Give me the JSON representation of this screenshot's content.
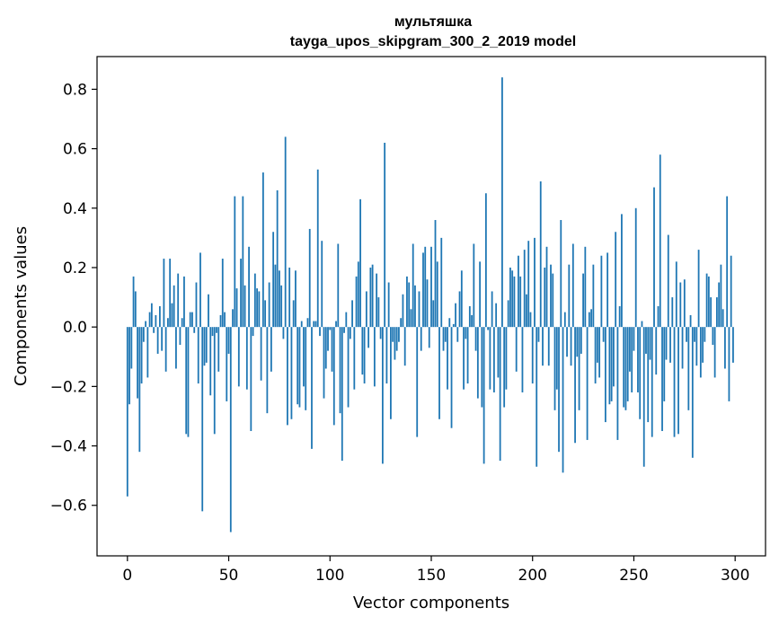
{
  "chart_data": {
    "type": "bar",
    "title": "мультяшка",
    "subtitle": "tayga_upos_skipgram_300_2_2019 model",
    "xlabel": "Vector components",
    "ylabel": "Components values",
    "xlim": [
      -15,
      315
    ],
    "ylim": [
      -0.77,
      0.91
    ],
    "xticks": [
      0,
      50,
      100,
      150,
      200,
      250,
      300
    ],
    "yticks": [
      -0.6,
      -0.4,
      -0.2,
      0.0,
      0.2,
      0.4,
      0.6,
      0.8
    ],
    "ytick_labels": [
      "−0.6",
      "−0.4",
      "−0.2",
      "0.0",
      "0.2",
      "0.4",
      "0.6",
      "0.8"
    ],
    "bar_color": "#1f77b4",
    "x": "indices 0..299",
    "values": [
      -0.57,
      -0.26,
      -0.14,
      0.17,
      0.12,
      -0.24,
      -0.42,
      -0.19,
      -0.05,
      0.02,
      -0.17,
      0.05,
      0.08,
      -0.02,
      0.04,
      -0.09,
      0.07,
      -0.08,
      0.23,
      -0.15,
      0.03,
      0.23,
      0.08,
      0.14,
      -0.14,
      0.18,
      -0.06,
      0.03,
      0.17,
      -0.36,
      -0.37,
      0.05,
      0.05,
      -0.02,
      0.15,
      -0.19,
      0.25,
      -0.62,
      -0.13,
      -0.12,
      0.11,
      -0.23,
      -0.03,
      -0.36,
      -0.02,
      -0.15,
      0.04,
      0.23,
      0.05,
      -0.25,
      -0.09,
      -0.69,
      0.06,
      0.44,
      0.13,
      -0.2,
      0.23,
      0.44,
      0.14,
      -0.21,
      0.27,
      -0.35,
      -0.03,
      0.18,
      0.13,
      0.12,
      -0.18,
      0.52,
      0.09,
      -0.29,
      0.15,
      -0.15,
      0.32,
      0.21,
      0.46,
      0.19,
      0.14,
      -0.04,
      0.64,
      -0.33,
      0.2,
      -0.31,
      0.09,
      0.19,
      -0.26,
      -0.27,
      0.02,
      -0.2,
      -0.28,
      0.03,
      0.33,
      -0.41,
      0.02,
      0.02,
      0.53,
      -0.03,
      0.29,
      -0.24,
      -0.14,
      -0.08,
      -0.01,
      -0.15,
      -0.33,
      0.02,
      0.28,
      -0.29,
      -0.45,
      -0.02,
      0.05,
      -0.27,
      -0.04,
      0.09,
      -0.21,
      0.17,
      0.22,
      0.43,
      -0.16,
      -0.19,
      0.12,
      -0.07,
      0.2,
      0.21,
      -0.2,
      0.18,
      0.1,
      -0.04,
      -0.46,
      0.62,
      -0.19,
      0.15,
      -0.31,
      -0.05,
      -0.11,
      -0.08,
      -0.05,
      0.03,
      0.11,
      -0.13,
      0.17,
      0.15,
      0.06,
      0.28,
      0.14,
      -0.37,
      0.12,
      -0.08,
      0.25,
      0.27,
      0.16,
      -0.07,
      0.27,
      0.09,
      0.36,
      0.22,
      -0.31,
      0.3,
      -0.08,
      -0.05,
      -0.21,
      0.03,
      -0.34,
      0.01,
      0.08,
      -0.05,
      0.12,
      0.19,
      -0.21,
      -0.04,
      -0.19,
      0.07,
      0.04,
      0.28,
      -0.08,
      -0.24,
      0.22,
      -0.27,
      -0.46,
      0.45,
      -0.01,
      -0.21,
      0.12,
      -0.22,
      0.08,
      -0.17,
      -0.45,
      0.84,
      -0.27,
      -0.21,
      0.09,
      0.2,
      0.19,
      0.17,
      -0.15,
      0.24,
      0.17,
      -0.22,
      0.26,
      0.11,
      0.29,
      0.05,
      -0.19,
      0.3,
      -0.47,
      -0.05,
      0.49,
      -0.13,
      0.2,
      0.27,
      -0.13,
      0.21,
      0.18,
      -0.28,
      -0.21,
      -0.42,
      0.36,
      -0.49,
      0.05,
      -0.1,
      0.21,
      -0.13,
      0.28,
      -0.39,
      -0.1,
      -0.28,
      -0.09,
      0.18,
      0.27,
      -0.38,
      0.05,
      0.06,
      0.21,
      -0.19,
      -0.12,
      -0.17,
      0.24,
      -0.05,
      -0.32,
      0.25,
      -0.26,
      -0.25,
      -0.2,
      0.32,
      -0.38,
      0.07,
      0.38,
      -0.27,
      -0.28,
      -0.25,
      -0.15,
      -0.22,
      -0.08,
      0.4,
      -0.22,
      -0.31,
      0.02,
      -0.47,
      -0.09,
      -0.32,
      -0.11,
      -0.37,
      0.47,
      -0.16,
      0.07,
      0.58,
      -0.35,
      -0.25,
      -0.11,
      0.31,
      -0.12,
      0.1,
      -0.37,
      0.22,
      -0.36,
      0.15,
      -0.14,
      0.16,
      -0.05,
      -0.28,
      0.04,
      -0.44,
      -0.05,
      -0.13,
      0.26,
      -0.17,
      -0.12,
      -0.05,
      0.18,
      0.17,
      0.1,
      -0.06,
      -0.17,
      0.1,
      0.15,
      0.21,
      0.06,
      -0.14,
      0.44,
      -0.25,
      0.24,
      -0.12
    ]
  }
}
